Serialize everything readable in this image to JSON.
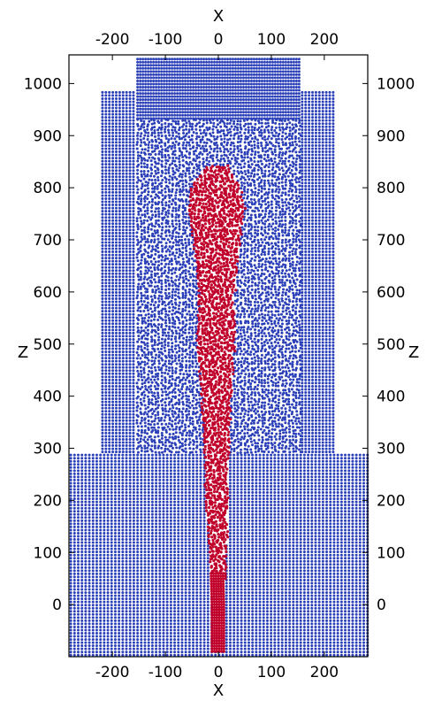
{
  "chart_data": {
    "type": "scatter",
    "title": "",
    "xlabel": "X",
    "ylabel": "Z",
    "xlim": [
      -282,
      282
    ],
    "ylim": [
      -100,
      1055
    ],
    "x_ticks": [
      -200,
      -100,
      0,
      100,
      200
    ],
    "y_ticks": [
      0,
      100,
      200,
      300,
      400,
      500,
      600,
      700,
      800,
      900,
      1000
    ],
    "grid": false,
    "legend": "none",
    "colors": {
      "outer": "#2b3fb8",
      "inner": "#c0002a",
      "frame": "#000000"
    },
    "series": [
      {
        "color": "outer",
        "regions": [
          {
            "x": [
              -282,
              282
            ],
            "z": [
              -100,
              290
            ],
            "dx": 7,
            "dz": 6
          },
          {
            "x": [
              -222,
              -155
            ],
            "z": [
              290,
              985
            ],
            "dx": 6.5,
            "dz": 6
          },
          {
            "x": [
              155,
              222
            ],
            "z": [
              290,
              985
            ],
            "dx": 6.5,
            "dz": 6
          },
          {
            "x": [
              -155,
              155
            ],
            "z": [
              290,
              930
            ],
            "dx": 6.5,
            "dz": 6,
            "jitter": true
          },
          {
            "x": [
              -155,
              155
            ],
            "z": [
              930,
              1050
            ],
            "dx": 5,
            "dz": 6
          }
        ]
      },
      {
        "color": "inner",
        "profile": [
          [
            -90,
            -12,
            12
          ],
          [
            0,
            -12,
            12
          ],
          [
            100,
            -15,
            15
          ],
          [
            200,
            -22,
            18
          ],
          [
            300,
            -25,
            20
          ],
          [
            400,
            -30,
            25
          ],
          [
            500,
            -38,
            30
          ],
          [
            600,
            -35,
            30
          ],
          [
            700,
            -45,
            40
          ],
          [
            760,
            -55,
            50
          ],
          [
            800,
            -50,
            40
          ],
          [
            840,
            -20,
            20
          ]
        ]
      }
    ]
  }
}
